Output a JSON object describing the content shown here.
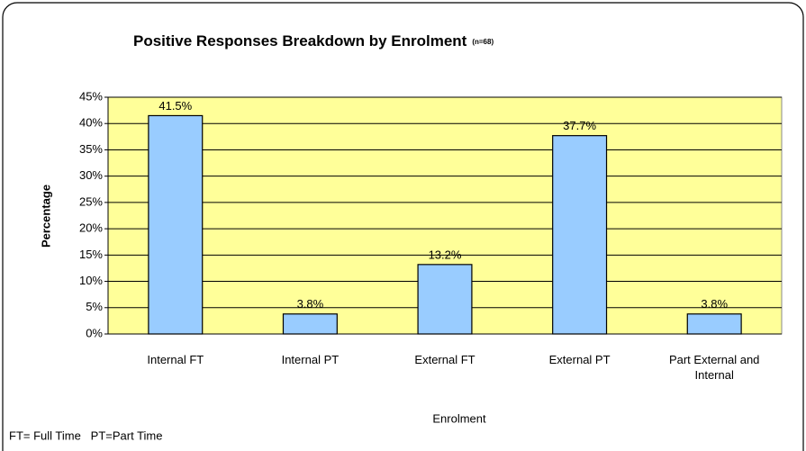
{
  "chart_data": {
    "type": "bar",
    "title": "Positive Responses Breakdown by Enrolment",
    "subtitle": "(n=68)",
    "x_label": "Enrolment",
    "y_label": "Percentage",
    "footnote": "FT= Full Time   PT=Part Time",
    "categories": [
      "Internal FT",
      "Internal PT",
      "External FT",
      "External PT",
      "Part External and Internal"
    ],
    "values": [
      41.5,
      3.8,
      13.2,
      37.7,
      3.8
    ],
    "value_labels": [
      "41.5%",
      "3.8%",
      "13.2%",
      "37.7%",
      "3.8%"
    ],
    "color": "#99ccff",
    "ylim": [
      0,
      45
    ],
    "yticks": [
      {
        "value": 0,
        "label": "0%"
      },
      {
        "value": 5,
        "label": "5%"
      },
      {
        "value": 10,
        "label": "10%"
      },
      {
        "value": 15,
        "label": "15%"
      },
      {
        "value": 20,
        "label": "20%"
      },
      {
        "value": 25,
        "label": "25%"
      },
      {
        "value": 30,
        "label": "30%"
      },
      {
        "value": 35,
        "label": "35%"
      },
      {
        "value": 40,
        "label": "40%"
      },
      {
        "value": 45,
        "label": "45%"
      }
    ],
    "grid": true
  }
}
